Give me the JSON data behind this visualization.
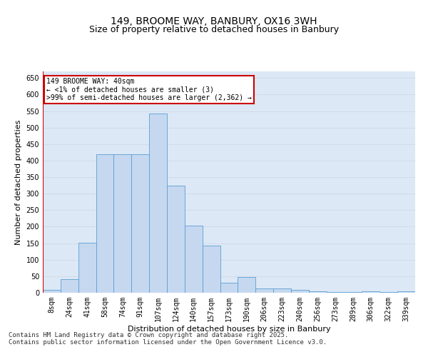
{
  "title1": "149, BROOME WAY, BANBURY, OX16 3WH",
  "title2": "Size of property relative to detached houses in Banbury",
  "xlabel": "Distribution of detached houses by size in Banbury",
  "ylabel": "Number of detached properties",
  "categories": [
    "8sqm",
    "24sqm",
    "41sqm",
    "58sqm",
    "74sqm",
    "91sqm",
    "107sqm",
    "124sqm",
    "140sqm",
    "157sqm",
    "173sqm",
    "190sqm",
    "206sqm",
    "223sqm",
    "240sqm",
    "256sqm",
    "273sqm",
    "289sqm",
    "306sqm",
    "322sqm",
    "339sqm"
  ],
  "values": [
    8,
    42,
    152,
    420,
    420,
    420,
    543,
    325,
    203,
    142,
    30,
    48,
    14,
    14,
    8,
    5,
    3,
    2,
    5,
    2,
    5
  ],
  "bar_color": "#c5d8f0",
  "bar_edge_color": "#5a9fd4",
  "highlight_color": "#cc0000",
  "annotation_text": "149 BROOME WAY: 40sqm\n← <1% of detached houses are smaller (3)\n>99% of semi-detached houses are larger (2,362) →",
  "annotation_box_color": "#ffffff",
  "annotation_box_edge": "#cc0000",
  "ylim": [
    0,
    670
  ],
  "yticks": [
    0,
    50,
    100,
    150,
    200,
    250,
    300,
    350,
    400,
    450,
    500,
    550,
    600,
    650
  ],
  "grid_color": "#d0d8e8",
  "background_color": "#dce8f5",
  "footnote1": "Contains HM Land Registry data © Crown copyright and database right 2025.",
  "footnote2": "Contains public sector information licensed under the Open Government Licence v3.0.",
  "title_fontsize": 10,
  "subtitle_fontsize": 9,
  "axis_label_fontsize": 8,
  "tick_fontsize": 7,
  "footnote_fontsize": 6.5
}
